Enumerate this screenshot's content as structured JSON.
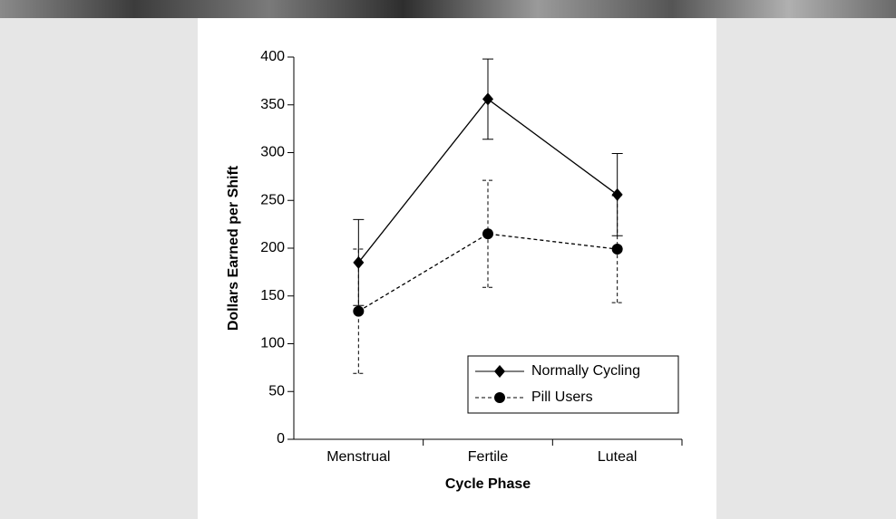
{
  "chart_data": {
    "type": "line",
    "x_label": "Cycle Phase",
    "y_label": "Dollars Earned per Shift",
    "categories": [
      "Menstrual",
      "Fertile",
      "Luteal"
    ],
    "series": [
      {
        "name": "Normally Cycling",
        "color": "#000000",
        "marker": "diamond",
        "dash": false,
        "values": [
          185,
          356,
          256
        ],
        "errors": [
          45,
          42,
          43
        ]
      },
      {
        "name": "Pill Users",
        "color": "#000000",
        "marker": "circle",
        "dash": true,
        "values": [
          134,
          215,
          199
        ],
        "errors": [
          65,
          56,
          56
        ]
      }
    ],
    "ylim": [
      0,
      400
    ],
    "yticks": [
      0,
      50,
      100,
      150,
      200,
      250,
      300,
      350,
      400
    ],
    "legend": "lower right"
  }
}
